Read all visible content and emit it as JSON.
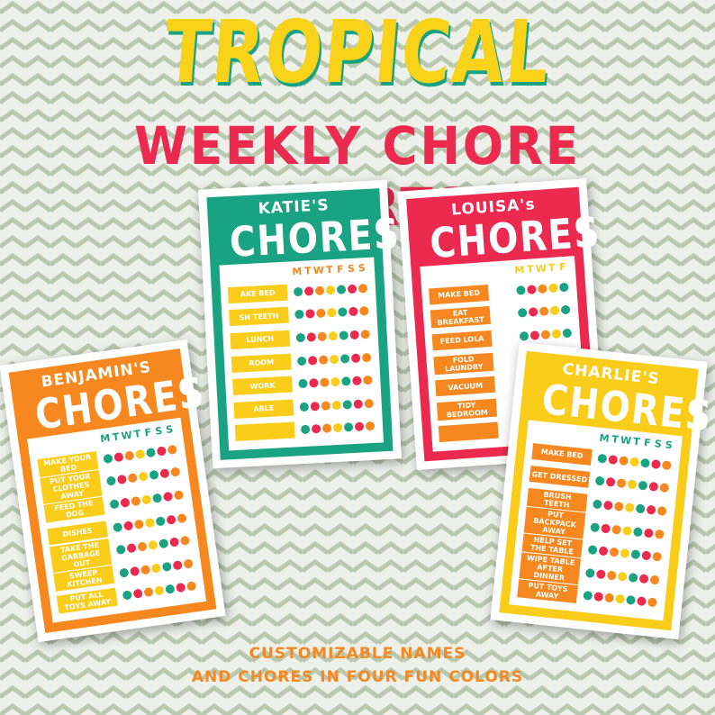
{
  "title": "TROPICAL",
  "subtitle": "WEEKLY CHORE CHARTS",
  "footer": [
    "CUSTOMIZABLE NAMES",
    "AND CHORES IN FOUR FUN COLORS"
  ],
  "colors": {
    "background": "#eef0ea",
    "chevron": "#b9c9b0",
    "teal": "#1aa383",
    "red": "#ec2a4f",
    "orange": "#f7881f",
    "yellow": "#f9cd1a"
  },
  "dot_colors": [
    "#1aa383",
    "#ec2a4f",
    "#f7881f",
    "#f9cd1a",
    "#1aa383",
    "#ec2a4f",
    "#f7881f"
  ],
  "cards": [
    {
      "name": "KATIE'S",
      "heading": "CHORES",
      "frame_color": "#1aa383",
      "label_color": "#f9cd1a",
      "day_color": "#f7881f",
      "days": [
        "M",
        "T",
        "W",
        "T",
        "F",
        "S",
        "S"
      ],
      "chores": [
        "AKE BED",
        "SH TEETH",
        "LUNCH",
        "ROOM",
        "WORK",
        "ABLE",
        ""
      ]
    },
    {
      "name": "LOUISA's",
      "heading": "CHORES",
      "frame_color": "#ec2a4f",
      "label_color": "#f7881f",
      "day_color": "#f9cd1a",
      "days": [
        "M",
        "T",
        "W",
        "T",
        "F"
      ],
      "chores": [
        "MAKE BED",
        "EAT BREAKFAST",
        "FEED LOLA",
        "FOLD LAUNDRY",
        "VACUUM",
        "TIDY BEDROOM",
        ""
      ]
    },
    {
      "name": "BENJAMIN'S",
      "heading": "CHORES",
      "frame_color": "#f7881f",
      "label_color": "#f9cd1a",
      "day_color": "#1aa383",
      "days": [
        "M",
        "T",
        "W",
        "T",
        "F",
        "S",
        "S"
      ],
      "chores": [
        "MAKE YOUR BED",
        "PUT YOUR CLOTHES AWAY",
        "FEED THE DOG",
        "DISHES",
        "TAKE THE GARBAGE OUT",
        "SWEEP KITCHEN",
        "PUT ALL TOYS AWAY"
      ]
    },
    {
      "name": "CHARLIE'S",
      "heading": "CHORES",
      "frame_color": "#f9cd1a",
      "label_color": "#f7881f",
      "day_color": "#1aa383",
      "days": [
        "M",
        "T",
        "W",
        "T",
        "F",
        "S",
        "S"
      ],
      "chores": [
        "MAKE BED",
        "GET DRESSED",
        "BRUSH TEETH",
        "PUT BACKPACK AWAY",
        "HELP SET THE TABLE",
        "WIPE TABLE AFTER DINNER",
        "PUT TOYS AWAY"
      ]
    }
  ]
}
